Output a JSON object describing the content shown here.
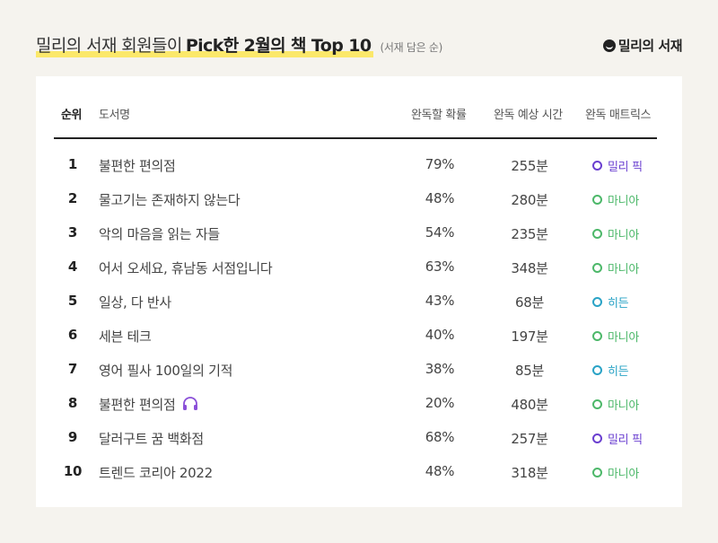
{
  "header": {
    "title_normal": "밀리의 서재 회원들이",
    "title_bold": "Pick한 2월의 책 Top 10",
    "subtitle": "(서재 담은 순)",
    "logo_text": "밀리의 서재"
  },
  "table": {
    "columns": {
      "rank": "순위",
      "title": "도서명",
      "rate": "완독할 확률",
      "time": "완독 예상 시간",
      "matrix": "완독 매트릭스"
    },
    "rows": [
      {
        "rank": "1",
        "title": "불편한 편의점",
        "rate": "79%",
        "time": "255분",
        "badge": "밀리 픽",
        "badge_color": "#6a3fd0"
      },
      {
        "rank": "2",
        "title": "물고기는 존재하지 않는다",
        "rate": "48%",
        "time": "280분",
        "badge": "마니아",
        "badge_color": "#4db86a"
      },
      {
        "rank": "3",
        "title": "악의 마음을 읽는 자들",
        "rate": "54%",
        "time": "235분",
        "badge": "마니아",
        "badge_color": "#4db86a"
      },
      {
        "rank": "4",
        "title": "어서 오세요, 휴남동 서점입니다",
        "rate": "63%",
        "time": "348분",
        "badge": "마니아",
        "badge_color": "#4db86a"
      },
      {
        "rank": "5",
        "title": "일상, 다 반사",
        "rate": "43%",
        "time": "68분",
        "badge": "히든",
        "badge_color": "#2aa3c6"
      },
      {
        "rank": "6",
        "title": "세븐 테크",
        "rate": "40%",
        "time": "197분",
        "badge": "마니아",
        "badge_color": "#4db86a"
      },
      {
        "rank": "7",
        "title": "영어 필사 100일의 기적",
        "rate": "38%",
        "time": "85분",
        "badge": "히든",
        "badge_color": "#2aa3c6"
      },
      {
        "rank": "8",
        "title": "불편한 편의점",
        "rate": "20%",
        "time": "480분",
        "badge": "마니아",
        "badge_color": "#4db86a",
        "icon": "headphone-icon"
      },
      {
        "rank": "9",
        "title": "달러구트 꿈 백화점",
        "rate": "68%",
        "time": "257분",
        "badge": "밀리 픽",
        "badge_color": "#6a3fd0"
      },
      {
        "rank": "10",
        "title": "트렌드 코리아 2022",
        "rate": "48%",
        "time": "318분",
        "badge": "마니아",
        "badge_color": "#4db86a"
      }
    ]
  },
  "colors": {
    "highlight": "#fbe86a",
    "background": "#f5f3ee",
    "headphone_icon": "#8a4fd8"
  }
}
